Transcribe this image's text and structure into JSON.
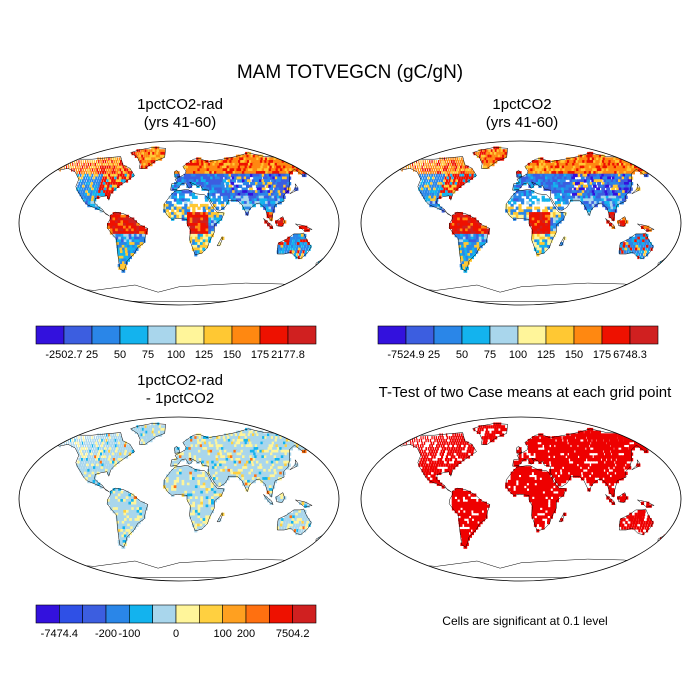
{
  "figure": {
    "title": "MAM TOTVEGCN (gC/gN)"
  },
  "panels": [
    {
      "id": "top-left",
      "title_lines": [
        "1pctCO2-rad",
        "(yrs 41-60)"
      ],
      "scheme": "abs",
      "colorbar": "cb_abs_rad"
    },
    {
      "id": "top-right",
      "title_lines": [
        "1pctCO2",
        "(yrs 41-60)"
      ],
      "scheme": "abs",
      "colorbar": "cb_abs_ctl"
    },
    {
      "id": "bottom-left",
      "title_lines": [
        "1pctCO2-rad",
        "- 1pctCO2"
      ],
      "scheme": "diff",
      "colorbar": "cb_diff"
    },
    {
      "id": "bottom-right",
      "title_lines": [
        "T-Test of two Case means at each grid point"
      ],
      "scheme": "sig",
      "colorbar": null,
      "note": "Cells are significant at 0.1 level"
    }
  ],
  "colorbars": {
    "cb_abs_rad": {
      "colors": [
        "#3311dd",
        "#3c5ee0",
        "#2a86e8",
        "#13b3ee",
        "#a9d6ec",
        "#fff59a",
        "#ffc833",
        "#ff8811",
        "#ee1100",
        "#d02020"
      ],
      "labels": [
        "-2502.7",
        "25",
        "50",
        "75",
        "100",
        "125",
        "150",
        "175",
        "2177.8"
      ]
    },
    "cb_abs_ctl": {
      "colors": [
        "#3311dd",
        "#3c5ee0",
        "#2a86e8",
        "#13b3ee",
        "#a9d6ec",
        "#fff59a",
        "#ffc833",
        "#ff8811",
        "#ee1100",
        "#d02020"
      ],
      "labels": [
        "-7524.9",
        "25",
        "50",
        "75",
        "100",
        "125",
        "150",
        "175",
        "6748.3"
      ]
    },
    "cb_diff": {
      "colors": [
        "#3311dd",
        "#2f50e6",
        "#3c5ee0",
        "#2a86e8",
        "#13b3ee",
        "#a9d6ec",
        "#fff59a",
        "#ffd040",
        "#ffa020",
        "#ff7010",
        "#ee1100",
        "#d02020"
      ],
      "labels": [
        "-7474.4",
        "-200",
        "-100",
        "0",
        "100",
        "200",
        "7504.2"
      ]
    }
  },
  "legend_colors": {
    "significant": "#ee0000"
  }
}
